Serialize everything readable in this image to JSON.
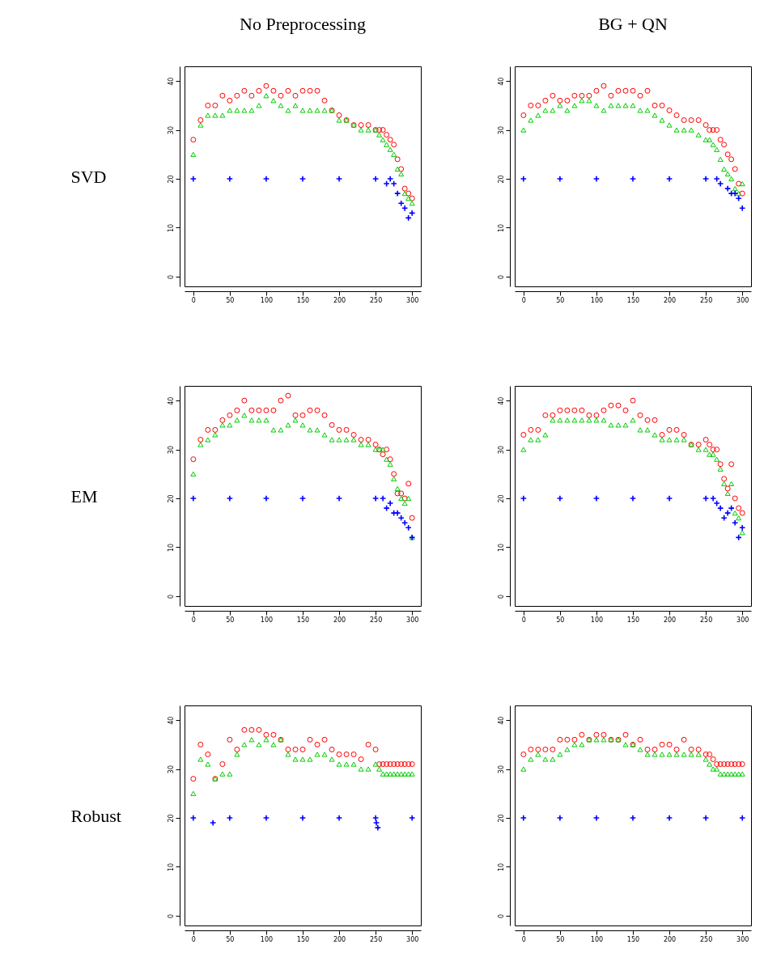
{
  "chart_data": [
    {
      "type": "scatter",
      "title": "No Preprocessing",
      "ylabel": "SVD",
      "xlim": [
        -12,
        312
      ],
      "ylim": [
        -2,
        43
      ],
      "xticks": [
        0,
        50,
        100,
        150,
        200,
        250,
        300
      ],
      "yticks": [
        0,
        10,
        20,
        30,
        40
      ],
      "x": [
        0,
        10,
        20,
        30,
        40,
        50,
        60,
        70,
        80,
        90,
        100,
        110,
        120,
        130,
        140,
        150,
        160,
        170,
        180,
        190,
        200,
        210,
        220,
        230,
        240,
        250,
        255,
        260,
        265,
        270,
        275,
        280,
        285,
        290,
        295,
        300
      ],
      "series": [
        {
          "color": "#ff0000",
          "marker": "circle",
          "values": [
            28,
            32,
            35,
            35,
            37,
            36,
            37,
            38,
            37,
            38,
            39,
            38,
            37,
            38,
            37,
            38,
            38,
            38,
            36,
            34,
            33,
            32,
            31,
            31,
            31,
            30,
            30,
            30,
            29,
            28,
            27,
            24,
            22,
            18,
            17,
            16
          ]
        },
        {
          "color": "#00cd00",
          "marker": "triangle",
          "values": [
            25,
            31,
            33,
            33,
            33,
            34,
            34,
            34,
            34,
            35,
            37,
            36,
            35,
            34,
            35,
            34,
            34,
            34,
            34,
            34,
            32,
            32,
            31,
            30,
            30,
            30,
            29,
            28,
            27,
            26,
            25,
            22,
            21,
            17,
            16,
            15
          ]
        },
        {
          "color": "#0000ff",
          "marker": "cross",
          "x": [
            0,
            50,
            100,
            150,
            200,
            250,
            265,
            270,
            275,
            280,
            285,
            290,
            295,
            300
          ],
          "values": [
            20,
            20,
            20,
            20,
            20,
            20,
            19,
            20,
            19,
            17,
            15,
            14,
            12,
            13
          ]
        }
      ]
    },
    {
      "type": "scatter",
      "title": "BG + QN",
      "xlim": [
        -12,
        312
      ],
      "ylim": [
        -2,
        43
      ],
      "xticks": [
        0,
        50,
        100,
        150,
        200,
        250,
        300
      ],
      "yticks": [
        0,
        10,
        20,
        30,
        40
      ],
      "x": [
        0,
        10,
        20,
        30,
        40,
        50,
        60,
        70,
        80,
        90,
        100,
        110,
        120,
        130,
        140,
        150,
        160,
        170,
        180,
        190,
        200,
        210,
        220,
        230,
        240,
        250,
        255,
        260,
        265,
        270,
        275,
        280,
        285,
        290,
        295,
        300
      ],
      "series": [
        {
          "color": "#ff0000",
          "marker": "circle",
          "values": [
            33,
            35,
            35,
            36,
            37,
            36,
            36,
            37,
            37,
            37,
            38,
            39,
            37,
            38,
            38,
            38,
            37,
            38,
            35,
            35,
            34,
            33,
            32,
            32,
            32,
            31,
            30,
            30,
            30,
            28,
            27,
            25,
            24,
            22,
            19,
            17
          ]
        },
        {
          "color": "#00cd00",
          "marker": "triangle",
          "values": [
            30,
            32,
            33,
            34,
            34,
            35,
            34,
            35,
            36,
            36,
            35,
            34,
            35,
            35,
            35,
            35,
            34,
            34,
            33,
            32,
            31,
            30,
            30,
            30,
            29,
            28,
            28,
            27,
            26,
            24,
            22,
            21,
            20,
            18,
            17,
            19
          ]
        },
        {
          "color": "#0000ff",
          "marker": "cross",
          "x": [
            0,
            50,
            100,
            150,
            200,
            250,
            265,
            270,
            280,
            285,
            290,
            295,
            300
          ],
          "values": [
            20,
            20,
            20,
            20,
            20,
            20,
            20,
            19,
            18,
            17,
            17,
            16,
            14
          ]
        }
      ]
    },
    {
      "type": "scatter",
      "ylabel": "EM",
      "xlim": [
        -12,
        312
      ],
      "ylim": [
        -2,
        43
      ],
      "xticks": [
        0,
        50,
        100,
        150,
        200,
        250,
        300
      ],
      "yticks": [
        0,
        10,
        20,
        30,
        40
      ],
      "x": [
        0,
        10,
        20,
        30,
        40,
        50,
        60,
        70,
        80,
        90,
        100,
        110,
        120,
        130,
        140,
        150,
        160,
        170,
        180,
        190,
        200,
        210,
        220,
        230,
        240,
        250,
        255,
        260,
        265,
        270,
        275,
        280,
        285,
        290,
        295,
        300
      ],
      "series": [
        {
          "color": "#ff0000",
          "marker": "circle",
          "values": [
            28,
            32,
            34,
            34,
            36,
            37,
            38,
            40,
            38,
            38,
            38,
            38,
            40,
            41,
            37,
            37,
            38,
            38,
            37,
            35,
            34,
            34,
            33,
            32,
            32,
            31,
            30,
            29,
            30,
            28,
            25,
            21,
            21,
            20,
            23,
            16
          ]
        },
        {
          "color": "#00cd00",
          "marker": "triangle",
          "values": [
            25,
            31,
            32,
            33,
            35,
            35,
            36,
            37,
            36,
            36,
            36,
            34,
            34,
            35,
            36,
            35,
            34,
            34,
            33,
            32,
            32,
            32,
            32,
            31,
            31,
            30,
            30,
            30,
            28,
            27,
            24,
            22,
            20,
            19,
            20,
            12
          ]
        },
        {
          "color": "#0000ff",
          "marker": "cross",
          "x": [
            0,
            50,
            100,
            150,
            200,
            250,
            260,
            265,
            270,
            275,
            280,
            285,
            290,
            295,
            300
          ],
          "values": [
            20,
            20,
            20,
            20,
            20,
            20,
            20,
            18,
            19,
            17,
            17,
            16,
            15,
            14,
            12
          ]
        }
      ]
    },
    {
      "type": "scatter",
      "xlim": [
        -12,
        312
      ],
      "ylim": [
        -2,
        43
      ],
      "xticks": [
        0,
        50,
        100,
        150,
        200,
        250,
        300
      ],
      "yticks": [
        0,
        10,
        20,
        30,
        40
      ],
      "x": [
        0,
        10,
        20,
        30,
        40,
        50,
        60,
        70,
        80,
        90,
        100,
        110,
        120,
        130,
        140,
        150,
        160,
        170,
        180,
        190,
        200,
        210,
        220,
        230,
        240,
        250,
        255,
        260,
        265,
        270,
        275,
        280,
        285,
        290,
        295,
        300
      ],
      "series": [
        {
          "color": "#ff0000",
          "marker": "circle",
          "values": [
            33,
            34,
            34,
            37,
            37,
            38,
            38,
            38,
            38,
            37,
            37,
            38,
            39,
            39,
            38,
            40,
            37,
            36,
            36,
            33,
            34,
            34,
            33,
            31,
            31,
            32,
            31,
            30,
            30,
            27,
            24,
            22,
            27,
            20,
            18,
            17
          ]
        },
        {
          "color": "#00cd00",
          "marker": "triangle",
          "values": [
            30,
            32,
            32,
            33,
            36,
            36,
            36,
            36,
            36,
            36,
            36,
            36,
            35,
            35,
            35,
            36,
            34,
            34,
            33,
            32,
            32,
            32,
            32,
            31,
            30,
            30,
            29,
            29,
            28,
            26,
            23,
            21,
            23,
            17,
            16,
            13
          ]
        },
        {
          "color": "#0000ff",
          "marker": "cross",
          "x": [
            0,
            50,
            100,
            150,
            200,
            250,
            260,
            265,
            270,
            275,
            280,
            285,
            290,
            295,
            300
          ],
          "values": [
            20,
            20,
            20,
            20,
            20,
            20,
            20,
            19,
            18,
            16,
            17,
            18,
            15,
            12,
            14
          ]
        }
      ]
    },
    {
      "type": "scatter",
      "ylabel": "Robust",
      "xlim": [
        -12,
        312
      ],
      "ylim": [
        -2,
        43
      ],
      "xticks": [
        0,
        50,
        100,
        150,
        200,
        250,
        300
      ],
      "yticks": [
        0,
        10,
        20,
        30,
        40
      ],
      "x": [
        0,
        10,
        20,
        30,
        40,
        50,
        60,
        70,
        80,
        90,
        100,
        110,
        120,
        130,
        140,
        150,
        160,
        170,
        180,
        190,
        200,
        210,
        220,
        230,
        240,
        250,
        255,
        260,
        265,
        270,
        275,
        280,
        285,
        290,
        295,
        300
      ],
      "series": [
        {
          "color": "#ff0000",
          "marker": "circle",
          "values": [
            28,
            35,
            33,
            28,
            31,
            36,
            34,
            38,
            38,
            38,
            37,
            37,
            36,
            34,
            34,
            34,
            36,
            35,
            36,
            34,
            33,
            33,
            33,
            32,
            35,
            34,
            31,
            31,
            31,
            31,
            31,
            31,
            31,
            31,
            31,
            31
          ]
        },
        {
          "color": "#00cd00",
          "marker": "triangle",
          "values": [
            25,
            32,
            31,
            28,
            29,
            29,
            33,
            35,
            36,
            35,
            36,
            35,
            36,
            33,
            32,
            32,
            32,
            33,
            33,
            32,
            31,
            31,
            31,
            30,
            30,
            31,
            30,
            29,
            29,
            29,
            29,
            29,
            29,
            29,
            29,
            29
          ]
        },
        {
          "color": "#0000ff",
          "marker": "cross",
          "x": [
            0,
            27,
            50,
            100,
            150,
            200,
            250,
            251,
            253,
            300
          ],
          "values": [
            20,
            19,
            20,
            20,
            20,
            20,
            20,
            19,
            18,
            20
          ]
        }
      ]
    },
    {
      "type": "scatter",
      "xlim": [
        -12,
        312
      ],
      "ylim": [
        -2,
        43
      ],
      "xticks": [
        0,
        50,
        100,
        150,
        200,
        250,
        300
      ],
      "yticks": [
        0,
        10,
        20,
        30,
        40
      ],
      "x": [
        0,
        10,
        20,
        30,
        40,
        50,
        60,
        70,
        80,
        90,
        100,
        110,
        120,
        130,
        140,
        150,
        160,
        170,
        180,
        190,
        200,
        210,
        220,
        230,
        240,
        250,
        255,
        260,
        265,
        270,
        275,
        280,
        285,
        290,
        295,
        300
      ],
      "series": [
        {
          "color": "#ff0000",
          "marker": "circle",
          "values": [
            33,
            34,
            34,
            34,
            34,
            36,
            36,
            36,
            37,
            36,
            37,
            37,
            36,
            36,
            37,
            35,
            36,
            34,
            34,
            35,
            35,
            34,
            36,
            34,
            34,
            33,
            33,
            32,
            31,
            31,
            31,
            31,
            31,
            31,
            31,
            31
          ]
        },
        {
          "color": "#00cd00",
          "marker": "triangle",
          "values": [
            30,
            32,
            33,
            32,
            32,
            33,
            34,
            35,
            35,
            36,
            36,
            36,
            36,
            36,
            35,
            35,
            34,
            33,
            33,
            33,
            33,
            33,
            33,
            33,
            33,
            32,
            31,
            30,
            30,
            29,
            29,
            29,
            29,
            29,
            29,
            29
          ]
        },
        {
          "color": "#0000ff",
          "marker": "cross",
          "x": [
            0,
            50,
            100,
            150,
            200,
            250,
            300
          ],
          "values": [
            20,
            20,
            20,
            20,
            20,
            20,
            20
          ]
        }
      ]
    }
  ]
}
